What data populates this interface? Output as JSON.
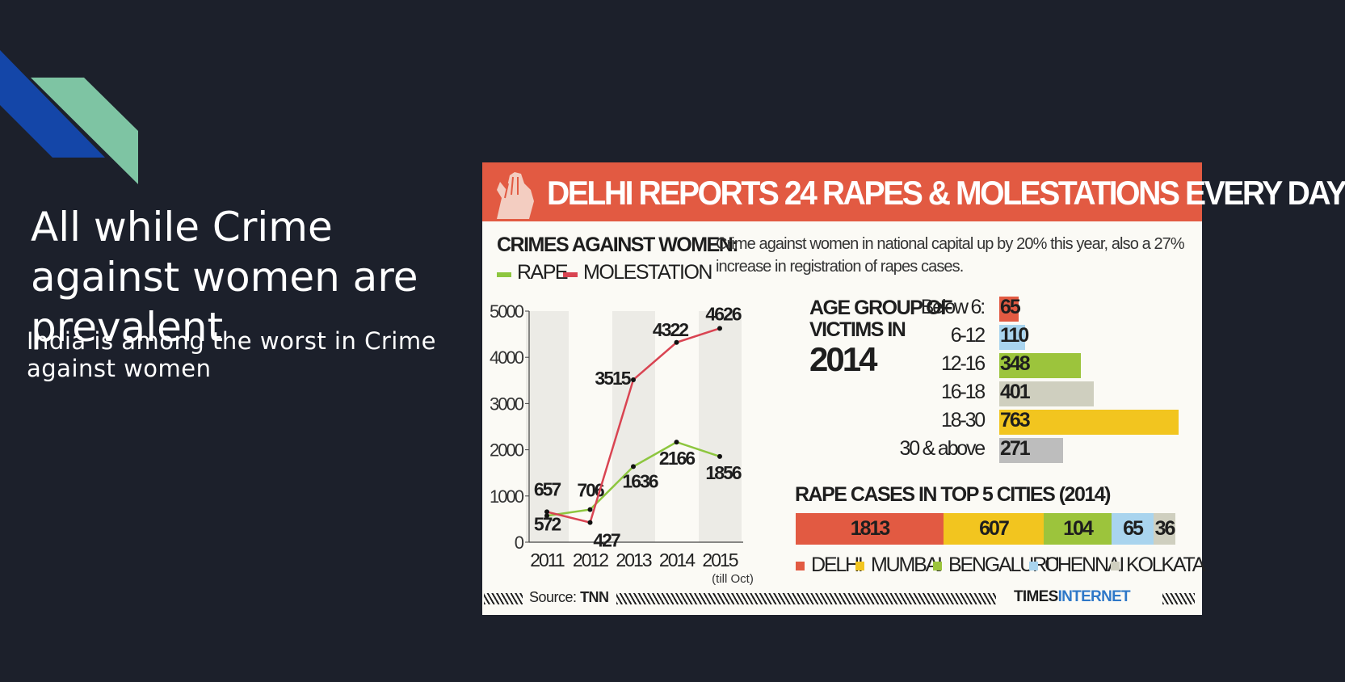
{
  "slide": {
    "title": "All while Crime against women are prevalent",
    "subtitle": "India is among the worst in Crime against women"
  },
  "colors": {
    "background": "#1c202b",
    "deco_blue": "#1446a8",
    "deco_green": "#7ec4a3",
    "banner": "#e25a42",
    "rape_line": "#8dc63f",
    "molestation_line": "#d94452"
  },
  "infographic": {
    "banner_title": "DELHI REPORTS 24 RAPES & MOLESTATIONS EVERY DAY",
    "banner_icon": "raised-hand-icon",
    "line_chart_heading": "CRIMES AGAINST WOMEN:",
    "legend_rape": "RAPE",
    "legend_molestation": "MOLESTATION",
    "blurb": "Crime against women in national capital up by 20% this year, also a 27% increase in registration of rapes cases.",
    "age_heading_line1": "AGE GROUP OF",
    "age_heading_line2": "VICTIMS IN",
    "age_heading_year": "2014",
    "cities_heading": "RAPE CASES IN TOP 5 CITIES (2014)",
    "source_label": "Source:",
    "source_name": "TNN",
    "brand_part1": "TIMES",
    "brand_part2": "INTERNET"
  },
  "chart_data": [
    {
      "type": "line",
      "title": "CRIMES AGAINST WOMEN:",
      "categories": [
        "2011",
        "2012",
        "2013",
        "2014",
        "2015"
      ],
      "x_note": "(till Oct)",
      "ylim": [
        0,
        5000
      ],
      "yticks": [
        "0",
        "1000",
        "2000",
        "3000",
        "4000",
        "5000"
      ],
      "grid": "vertical bands",
      "series": [
        {
          "name": "RAPE",
          "color": "#8dc63f",
          "values": [
            572,
            706,
            1636,
            2166,
            1856
          ],
          "labels": [
            "572",
            "706",
            "1636",
            "2166",
            "1856"
          ]
        },
        {
          "name": "MOLESTATION",
          "color": "#d94452",
          "values": [
            657,
            427,
            3515,
            4322,
            4626
          ],
          "labels": [
            "657",
            "427",
            "3515",
            "4322",
            "4626"
          ]
        }
      ]
    },
    {
      "type": "bar",
      "title": "AGE GROUP OF VICTIMS IN 2014",
      "categories": [
        "Below 6:",
        "6-12",
        "12-16",
        "16-18",
        "18-30",
        "30 & above"
      ],
      "values": [
        65,
        110,
        348,
        401,
        763,
        271
      ],
      "labels": [
        "65",
        "110",
        "348",
        "401",
        "763",
        "271"
      ],
      "colors": [
        "#e25a42",
        "#a9d4ee",
        "#9cc43c",
        "#cfcfbf",
        "#f2c51f",
        "#bdbdbd"
      ]
    },
    {
      "type": "bar",
      "title": "RAPE CASES IN TOP 5 CITIES (2014)",
      "categories": [
        "DELHI",
        "MUMBAI",
        "BENGALURU",
        "CHENNAI",
        "KOLKATA"
      ],
      "values": [
        1813,
        607,
        104,
        65,
        36
      ],
      "labels": [
        "1813",
        "607",
        "104",
        "65",
        "36"
      ],
      "colors": [
        "#e25a42",
        "#f2c51f",
        "#9cc43c",
        "#a9d4ee",
        "#cfcfbf"
      ],
      "legend": "bottom"
    }
  ]
}
